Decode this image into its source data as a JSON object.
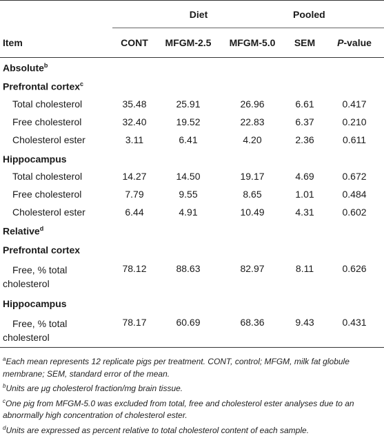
{
  "header": {
    "group_diet": "Diet",
    "group_pooled": "Pooled",
    "item": "Item",
    "cont": "CONT",
    "mfgm25": "MFGM-2.5",
    "mfgm50": "MFGM-5.0",
    "sem": "SEM",
    "p_letter": "P",
    "p_rest": "-value"
  },
  "sections": {
    "absolute": "Absolute",
    "absolute_sup": "b",
    "relative": "Relative",
    "relative_sup": "d",
    "pfc_abs": "Prefrontal cortex",
    "pfc_abs_sup": "c",
    "hip_abs": "Hippocampus",
    "pfc_rel": "Prefrontal cortex",
    "hip_rel": "Hippocampus"
  },
  "rows": [
    {
      "label": "Total cholesterol",
      "cont": "35.48",
      "m25": "25.91",
      "m50": "26.96",
      "sem": "6.61",
      "p": "0.417"
    },
    {
      "label": "Free cholesterol",
      "cont": "32.40",
      "m25": "19.52",
      "m50": "22.83",
      "sem": "6.37",
      "p": "0.210"
    },
    {
      "label": "Cholesterol ester",
      "cont": "3.11",
      "m25": "6.41",
      "m50": "4.20",
      "sem": "2.36",
      "p": "0.611"
    },
    {
      "label": "Total cholesterol",
      "cont": "14.27",
      "m25": "14.50",
      "m50": "19.17",
      "sem": "4.69",
      "p": "0.672"
    },
    {
      "label": "Free cholesterol",
      "cont": "7.79",
      "m25": "9.55",
      "m50": "8.65",
      "sem": "1.01",
      "p": "0.484"
    },
    {
      "label": "Cholesterol ester",
      "cont": "6.44",
      "m25": "4.91",
      "m50": "10.49",
      "sem": "4.31",
      "p": "0.602"
    },
    {
      "label1": "Free, % total",
      "label2": "cholesterol",
      "cont": "78.12",
      "m25": "88.63",
      "m50": "82.97",
      "sem": "8.11",
      "p": "0.626"
    },
    {
      "label1": "Free, % total",
      "label2": "cholesterol",
      "cont": "78.17",
      "m25": "60.69",
      "m50": "68.36",
      "sem": "9.43",
      "p": "0.431"
    }
  ],
  "footnotes": {
    "a_mark": "a",
    "a_text": "Each mean represents 12 replicate pigs per treatment. CONT, control; MFGM, milk fat globule membrane; SEM, standard error of the mean.",
    "b_mark": "b",
    "b_text": "Units are μg cholesterol fraction/mg brain tissue.",
    "c_mark": "c",
    "c_text": "One pig from MFGM-5.0 was excluded from total, free and cholesterol ester analyses due to an abnormally high concentration of cholesterol ester.",
    "d_mark": "d",
    "d_text": "Units are expressed as percent relative to total cholesterol content of each sample."
  }
}
